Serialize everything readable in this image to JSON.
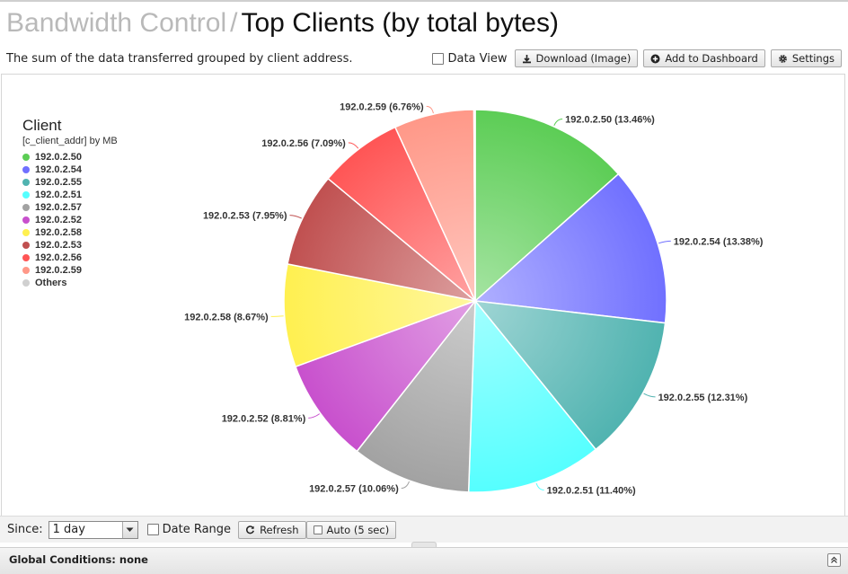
{
  "header": {
    "crumb": "Bandwidth Control",
    "separator": "/",
    "title": "Top Clients (by total bytes)",
    "description": "The sum of the data transferred grouped by client address."
  },
  "toolbar": {
    "data_view_label": "Data View",
    "download_label": "Download (Image)",
    "dashboard_label": "Add to Dashboard",
    "settings_label": "Settings"
  },
  "legend": {
    "title": "Client",
    "subtitle": "[c_client_addr] by MB"
  },
  "footer": {
    "since_label": "Since:",
    "since_value": "1 day",
    "date_range_label": "Date Range",
    "refresh_label": "Refresh",
    "auto_label": "Auto (5 sec)",
    "global_conditions": "Global Conditions: none"
  },
  "chart_data": {
    "type": "pie",
    "title": "Client",
    "subtitle": "[c_client_addr] by MB",
    "legend_position": "left",
    "slices": [
      {
        "label": "192.0.2.50",
        "percent": 13.46,
        "display": "192.0.2.50 (13.46%)",
        "color": "#5ccd55"
      },
      {
        "label": "192.0.2.54",
        "percent": 13.38,
        "display": "192.0.2.54 (13.38%)",
        "color": "#7070ff"
      },
      {
        "label": "192.0.2.55",
        "percent": 12.31,
        "display": "192.0.2.55 (12.31%)",
        "color": "#50b3b0"
      },
      {
        "label": "192.0.2.51",
        "percent": 11.4,
        "display": "192.0.2.51 (11.40%)",
        "color": "#55ffff"
      },
      {
        "label": "192.0.2.57",
        "percent": 10.06,
        "display": "192.0.2.57 (10.06%)",
        "color": "#a2a2a2"
      },
      {
        "label": "192.0.2.52",
        "percent": 8.81,
        "display": "192.0.2.52 (8.81%)",
        "color": "#c850cd"
      },
      {
        "label": "192.0.2.58",
        "percent": 8.67,
        "display": "192.0.2.58 (8.67%)",
        "color": "#fff050"
      },
      {
        "label": "192.0.2.53",
        "percent": 7.95,
        "display": "192.0.2.53 (7.95%)",
        "color": "#c05050"
      },
      {
        "label": "192.0.2.56",
        "percent": 7.09,
        "display": "192.0.2.56 (7.09%)",
        "color": "#ff5555"
      },
      {
        "label": "192.0.2.59",
        "percent": 6.76,
        "display": "192.0.2.59 (6.76%)",
        "color": "#ff9888"
      },
      {
        "label": "Others",
        "percent": 0.11,
        "display": "",
        "color": "#d0d0d0"
      }
    ]
  }
}
